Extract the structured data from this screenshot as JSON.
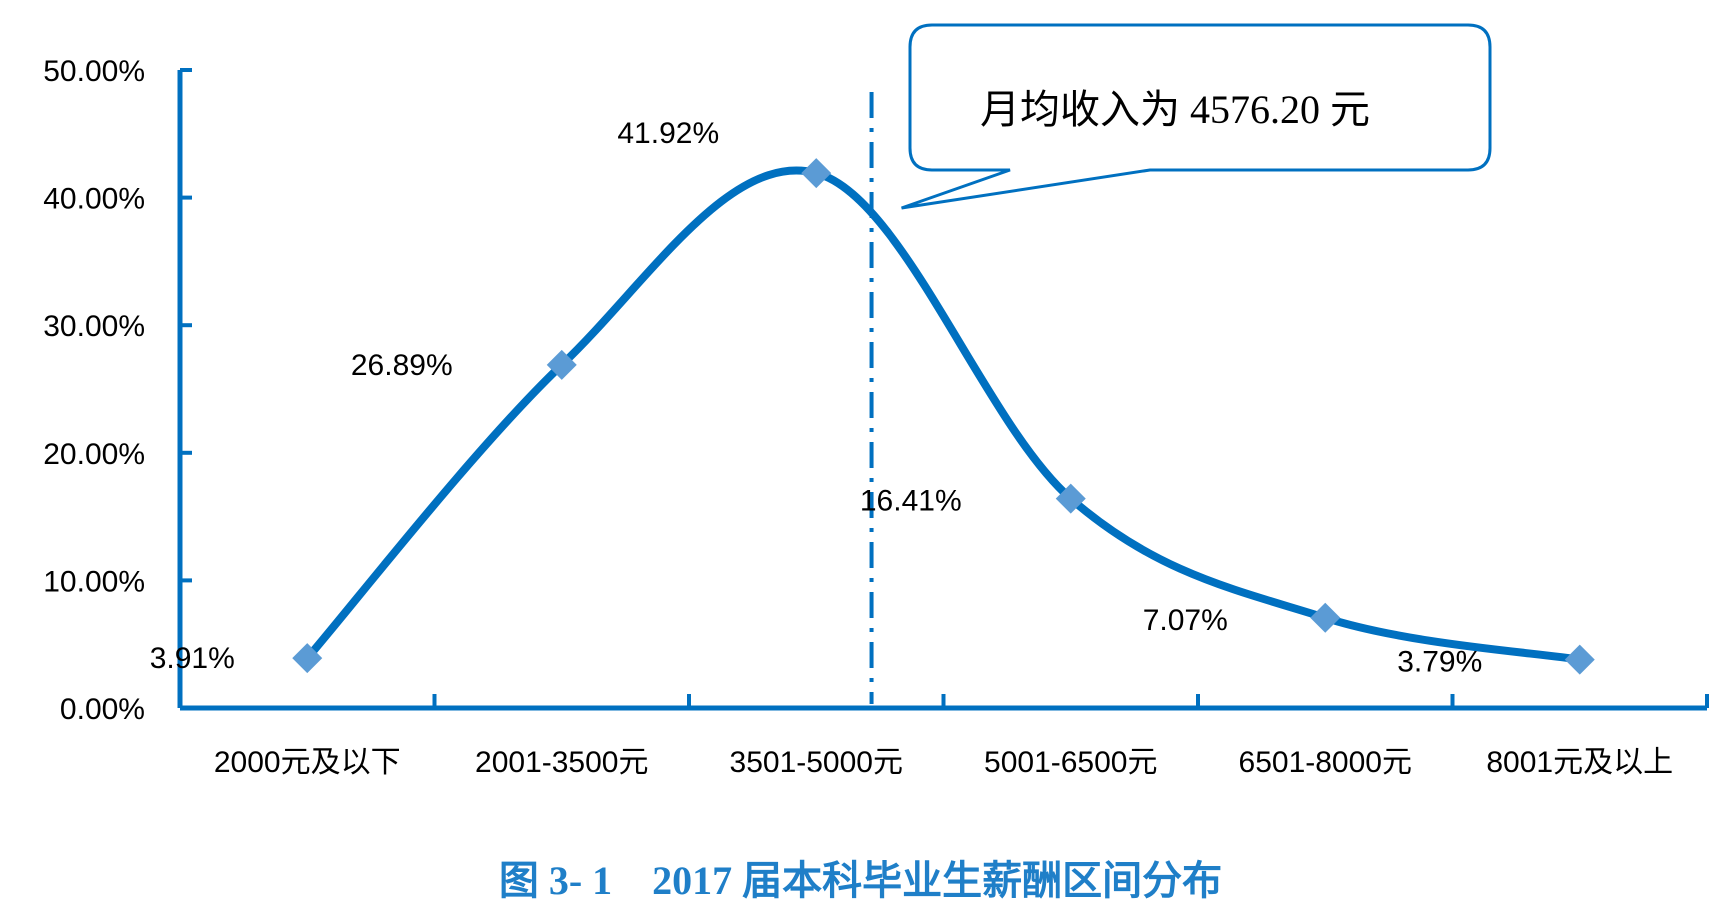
{
  "chart_data": {
    "type": "line",
    "categories": [
      "2000元及以下",
      "2001-3500元",
      "3501-5000元",
      "5001-6500元",
      "6501-8000元",
      "8001元及以上"
    ],
    "values": [
      3.91,
      26.89,
      41.92,
      16.41,
      7.07,
      3.79
    ],
    "data_labels": [
      "3.91%",
      "26.89%",
      "41.92%",
      "16.41%",
      "7.07%",
      "3.79%"
    ],
    "y_ticks": [
      "0.00%",
      "10.00%",
      "20.00%",
      "30.00%",
      "40.00%",
      "50.00%"
    ],
    "ylim": [
      0,
      50
    ],
    "title": "图 3- 1    2017 届本科毕业生薪酬区间分布",
    "annotation": "月均收入为 4576.20 元",
    "mean_value": 4576.2,
    "grid": false,
    "line_color": "#0070c0",
    "marker_color": "#5b9bd5",
    "title_color": "#1f7fc8"
  }
}
